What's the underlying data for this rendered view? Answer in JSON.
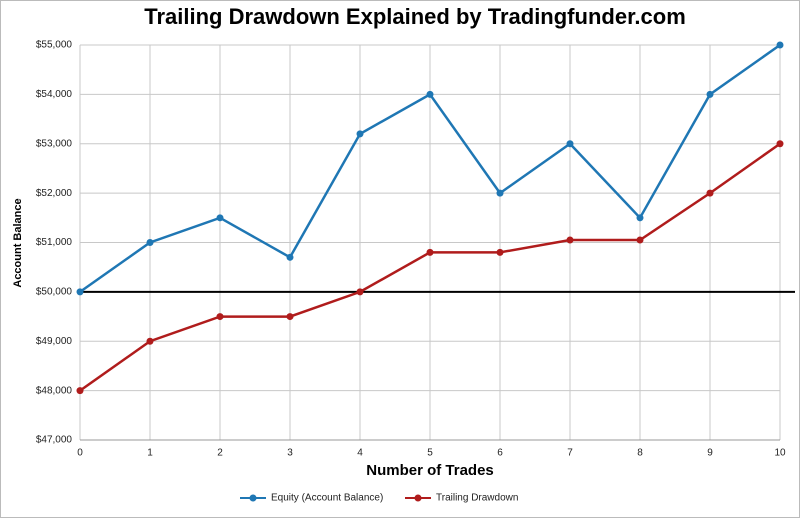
{
  "chart_data": {
    "type": "line",
    "title": "Trailing Drawdown Explained by Tradingfunder.com",
    "x_label": "Number of Trades",
    "y_label": "Account Balance",
    "x": [
      0,
      1,
      2,
      3,
      4,
      5,
      6,
      7,
      8,
      9,
      10
    ],
    "series": [
      {
        "name": "Equity (Account Balance)",
        "color": "#1f77b4",
        "values": [
          50000,
          51000,
          51500,
          50700,
          53200,
          54000,
          52000,
          53000,
          51500,
          54000,
          55000
        ]
      },
      {
        "name": "Trailing  Drawdown",
        "color": "#b01c1c",
        "values": [
          48000,
          49000,
          49500,
          49500,
          50000,
          50800,
          50800,
          51050,
          51050,
          52000,
          53000
        ]
      }
    ],
    "xlim": [
      0,
      10
    ],
    "xticks": [
      0,
      1,
      2,
      3,
      4,
      5,
      6,
      7,
      8,
      9,
      10
    ],
    "ylim": [
      47000,
      55000
    ],
    "yticks": [
      {
        "value": 47000,
        "label": "$47,000"
      },
      {
        "value": 48000,
        "label": "$48,000"
      },
      {
        "value": 49000,
        "label": "$49,000"
      },
      {
        "value": 50000,
        "label": "$50,000"
      },
      {
        "value": 51000,
        "label": "$51,000"
      },
      {
        "value": 52000,
        "label": "$52,000"
      },
      {
        "value": 53000,
        "label": "$53,000"
      },
      {
        "value": 54000,
        "label": "$54,000"
      },
      {
        "value": 55000,
        "label": "$55,000"
      }
    ],
    "reference_line": 50000,
    "grid": true,
    "legend": "bottom"
  }
}
